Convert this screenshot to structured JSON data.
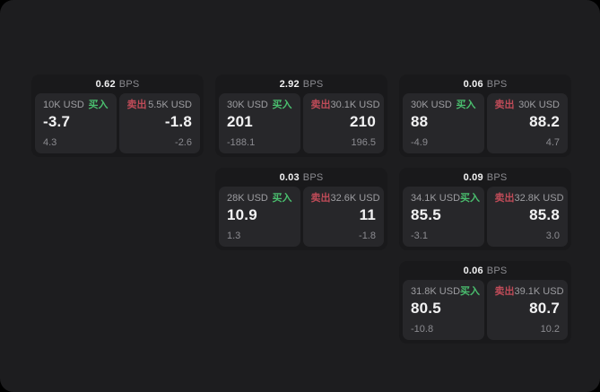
{
  "labels": {
    "buy": "买入",
    "sell": "卖出",
    "bps_unit": "BPS"
  },
  "colors": {
    "page_bg": "#000000",
    "window_bg": "#1d1d1f",
    "card_bg": "#19191b",
    "panel_bg": "#27272a",
    "buy": "#4abe6e",
    "sell": "#bf4b58",
    "text_primary": "#f2f2f3",
    "text_secondary": "#8b8b90",
    "label": "#9d9da1"
  },
  "cards": [
    {
      "col": 1,
      "row": 1,
      "bps": "0.62",
      "buy": {
        "amount": "10K USD",
        "price": "-3.7",
        "delta": "4.3"
      },
      "sell": {
        "amount": "5.5K USD",
        "price": "-1.8",
        "delta": "-2.6"
      }
    },
    {
      "col": 2,
      "row": 1,
      "bps": "2.92",
      "buy": {
        "amount": "30K USD",
        "price": "201",
        "delta": "-188.1"
      },
      "sell": {
        "amount": "30.1K USD",
        "price": "210",
        "delta": "196.5"
      }
    },
    {
      "col": 3,
      "row": 1,
      "bps": "0.06",
      "buy": {
        "amount": "30K USD",
        "price": "88",
        "delta": "-4.9"
      },
      "sell": {
        "amount": "30K USD",
        "price": "88.2",
        "delta": "4.7"
      }
    },
    {
      "col": 2,
      "row": 2,
      "bps": "0.03",
      "buy": {
        "amount": "28K USD",
        "price": "10.9",
        "delta": "1.3"
      },
      "sell": {
        "amount": "32.6K USD",
        "price": "11",
        "delta": "-1.8"
      }
    },
    {
      "col": 3,
      "row": 2,
      "bps": "0.09",
      "buy": {
        "amount": "34.1K USD",
        "price": "85.5",
        "delta": "-3.1"
      },
      "sell": {
        "amount": "32.8K USD",
        "price": "85.8",
        "delta": "3.0"
      }
    },
    {
      "col": 3,
      "row": 3,
      "bps": "0.06",
      "buy": {
        "amount": "31.8K USD",
        "price": "80.5",
        "delta": "-10.8"
      },
      "sell": {
        "amount": "39.1K USD",
        "price": "80.7",
        "delta": "10.2"
      }
    }
  ]
}
